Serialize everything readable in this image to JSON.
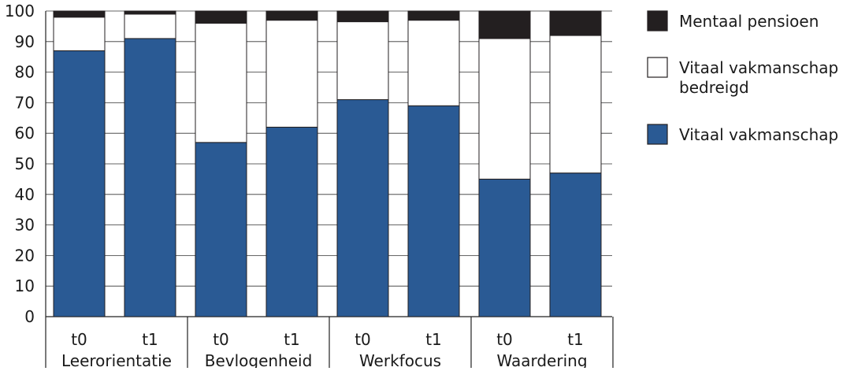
{
  "chart_data": {
    "type": "bar",
    "stacked": true,
    "groups": [
      "Leerorientatie",
      "Bevlogenheid",
      "Werkfocus",
      "Waardering"
    ],
    "categories": [
      "t0",
      "t1",
      "t0",
      "t1",
      "t0",
      "t1",
      "t0",
      "t1"
    ],
    "series": [
      {
        "name": "Vitaal vakmanschap",
        "color": "#2a5a94",
        "values": [
          87,
          91,
          57,
          62,
          71,
          69,
          45,
          47
        ]
      },
      {
        "name": "Vitaal vakmanschap bedreigd",
        "color": "#ffffff",
        "values": [
          11,
          8,
          39,
          35,
          25.5,
          28,
          46,
          45
        ]
      },
      {
        "name": "Mentaal pensioen",
        "color": "#231f20",
        "values": [
          2,
          1,
          4,
          3,
          3.5,
          3,
          9,
          8
        ]
      }
    ],
    "legend_order": [
      {
        "lines": [
          "Mentaal pensioen"
        ],
        "color": "#231f20"
      },
      {
        "lines": [
          "Vitaal vakmanschap",
          "bedreigd"
        ],
        "color": "#ffffff"
      },
      {
        "lines": [
          "Vitaal vakmanschap"
        ],
        "color": "#2a5a94"
      }
    ],
    "yticks": [
      0,
      10,
      20,
      30,
      40,
      50,
      60,
      70,
      80,
      90,
      100
    ],
    "ylim": [
      0,
      100
    ],
    "grid": true,
    "legend_position": "right",
    "title": "",
    "xlabel": "",
    "ylabel": ""
  }
}
